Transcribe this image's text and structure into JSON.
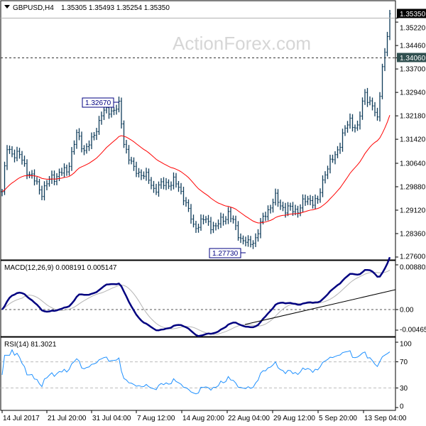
{
  "header": {
    "symbol": "GBPUSD,H4",
    "ohlc": "1.35305 1.35493 1.35254 1.35350",
    "menu_icon": "triangle-down-icon"
  },
  "watermark": "ActionForex.com",
  "chart_data": [
    {
      "type": "bar",
      "title": "GBPUSD,H4 1.35305 1.35493 1.35254 1.35350",
      "price_axis_ticks": [
        "1.35220",
        "1.34460",
        "1.33700",
        "1.32940",
        "1.32180",
        "1.31420",
        "1.30640",
        "1.29880",
        "1.29120",
        "1.28360",
        "1.27600"
      ],
      "ylim": [
        1.276,
        1.356
      ],
      "current_price": "1.35350",
      "level_line": "1.34060",
      "annotations": [
        "1.32670",
        "1.27730"
      ],
      "approx_close_anchors_bar_price": [
        [
          0,
          1.2972
        ],
        [
          2,
          1.311
        ],
        [
          7,
          1.3087
        ],
        [
          11,
          1.303
        ],
        [
          16,
          1.2972
        ],
        [
          20,
          1.3018
        ],
        [
          26,
          1.304
        ],
        [
          30,
          1.3156
        ],
        [
          33,
          1.311
        ],
        [
          36,
          1.3133
        ],
        [
          40,
          1.3225
        ],
        [
          44,
          1.3237
        ],
        [
          47,
          1.3248
        ],
        [
          49,
          1.3133
        ],
        [
          53,
          1.304
        ],
        [
          57,
          1.303
        ],
        [
          61,
          1.2983
        ],
        [
          69,
          1.3006
        ],
        [
          73,
          1.296
        ],
        [
          77,
          1.2857
        ],
        [
          81,
          1.288
        ],
        [
          86,
          1.2857
        ],
        [
          91,
          1.2903
        ],
        [
          96,
          1.2822
        ],
        [
          99,
          1.2799
        ],
        [
          102,
          1.2822
        ],
        [
          106,
          1.2903
        ],
        [
          110,
          1.2949
        ],
        [
          114,
          1.2914
        ],
        [
          119,
          1.2914
        ],
        [
          123,
          1.2949
        ],
        [
          127,
          1.2937
        ],
        [
          130,
          1.304
        ],
        [
          134,
          1.3087
        ],
        [
          137,
          1.3156
        ],
        [
          140,
          1.3202
        ],
        [
          143,
          1.3179
        ],
        [
          146,
          1.3294
        ],
        [
          149,
          1.3248
        ],
        [
          151,
          1.3202
        ],
        [
          153,
          1.3386
        ],
        [
          154,
          1.342
        ],
        [
          156,
          1.3535
        ]
      ],
      "moving_average_color": "#ff0000",
      "bar_color": "#0f3c5a",
      "x_tick_labels": [
        "14 Jul 2017",
        "21 Jul 20:00",
        "31 Jul 04:00",
        "7 Aug 12:00",
        "14 Aug 20:00",
        "22 Aug 04:00",
        "29 Aug 12:00",
        "5 Sep 20:00",
        "13 Sep 04:00"
      ]
    },
    {
      "type": "line",
      "title": "MACD(12,26,9) 0.008191 0.005147",
      "axis_ticks": [
        "0.008802",
        "0.00",
        "-0.004656"
      ],
      "ylim": [
        -0.004656,
        0.008802
      ],
      "series_colors": {
        "macd": "#000080",
        "signal": "#b4b4b4"
      },
      "trendline": true
    },
    {
      "type": "line",
      "title": "RSI(14) 81.3021",
      "axis_ticks": [
        "100",
        "70",
        "30",
        "0"
      ],
      "ylim": [
        0,
        100
      ],
      "levels": [
        70,
        30
      ],
      "color": "#1e90ff"
    }
  ]
}
